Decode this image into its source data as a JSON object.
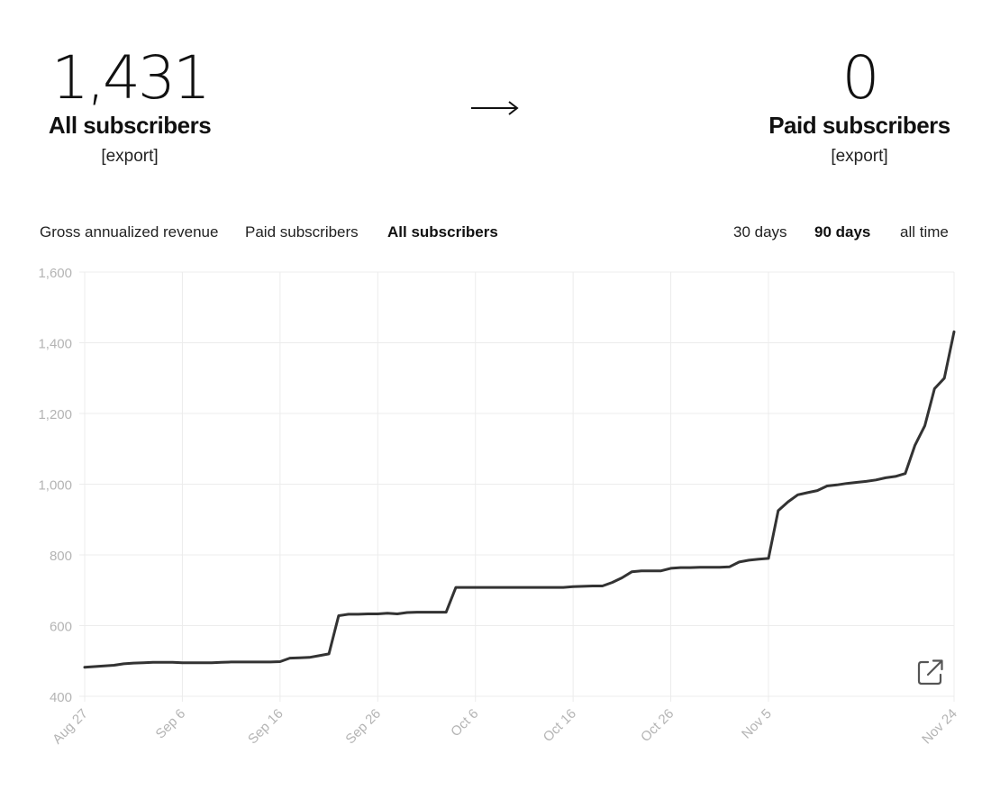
{
  "summary": {
    "from": {
      "value": "1,431",
      "label": "All subscribers",
      "export_label": "[export]"
    },
    "to": {
      "value": "0",
      "label": "Paid subscribers",
      "export_label": "[export]"
    }
  },
  "metric_tabs": [
    {
      "label": "Gross annualized revenue",
      "active": false
    },
    {
      "label": "Paid subscribers",
      "active": false
    },
    {
      "label": "All subscribers",
      "active": true
    }
  ],
  "range_tabs": [
    {
      "label": "30 days",
      "active": false
    },
    {
      "label": "90 days",
      "active": true
    },
    {
      "label": "all time",
      "active": false
    }
  ],
  "icons": {
    "arrow": "right-arrow-icon",
    "open": "open-in-new-icon"
  },
  "colors": {
    "line": "#333333",
    "grid": "#ececec",
    "tick_text": "#b4b4b4"
  },
  "chart_data": {
    "type": "line",
    "grid": true,
    "legend": "none",
    "xlabel": "",
    "ylabel": "",
    "ylim": [
      400,
      1600
    ],
    "yticks": [
      400,
      600,
      800,
      1000,
      1200,
      1400,
      1600
    ],
    "ytick_labels": [
      "400",
      "600",
      "800",
      "1,000",
      "1,200",
      "1,400",
      "1,600"
    ],
    "xlim": [
      "2022-08-27",
      "2022-11-24"
    ],
    "xticks": [
      "2022-08-27",
      "2022-09-06",
      "2022-09-16",
      "2022-09-26",
      "2022-10-06",
      "2022-10-16",
      "2022-10-26",
      "2022-11-05",
      "2022-11-24"
    ],
    "xtick_labels": [
      "Aug 27",
      "Sep 6",
      "Sep 16",
      "Sep 26",
      "Oct 6",
      "Oct 16",
      "Oct 26",
      "Nov 5",
      "Nov 24"
    ],
    "series": [
      {
        "x": [
          "2022-08-27",
          "2022-08-28",
          "2022-08-29",
          "2022-08-30",
          "2022-08-31",
          "2022-09-01",
          "2022-09-02",
          "2022-09-03",
          "2022-09-04",
          "2022-09-05",
          "2022-09-06",
          "2022-09-07",
          "2022-09-08",
          "2022-09-09",
          "2022-09-10",
          "2022-09-11",
          "2022-09-12",
          "2022-09-13",
          "2022-09-14",
          "2022-09-15",
          "2022-09-16",
          "2022-09-17",
          "2022-09-18",
          "2022-09-19",
          "2022-09-20",
          "2022-09-21",
          "2022-09-22",
          "2022-09-23",
          "2022-09-24",
          "2022-09-25",
          "2022-09-26",
          "2022-09-27",
          "2022-09-28",
          "2022-09-29",
          "2022-09-30",
          "2022-10-01",
          "2022-10-02",
          "2022-10-03",
          "2022-10-04",
          "2022-10-05",
          "2022-10-06",
          "2022-10-07",
          "2022-10-08",
          "2022-10-09",
          "2022-10-10",
          "2022-10-11",
          "2022-10-12",
          "2022-10-13",
          "2022-10-14",
          "2022-10-15",
          "2022-10-16",
          "2022-10-17",
          "2022-10-18",
          "2022-10-19",
          "2022-10-20",
          "2022-10-21",
          "2022-10-22",
          "2022-10-23",
          "2022-10-24",
          "2022-10-25",
          "2022-10-26",
          "2022-10-27",
          "2022-10-28",
          "2022-10-29",
          "2022-10-30",
          "2022-10-31",
          "2022-11-01",
          "2022-11-02",
          "2022-11-03",
          "2022-11-04",
          "2022-11-05",
          "2022-11-06",
          "2022-11-07",
          "2022-11-08",
          "2022-11-09",
          "2022-11-10",
          "2022-11-11",
          "2022-11-12",
          "2022-11-13",
          "2022-11-14",
          "2022-11-15",
          "2022-11-16",
          "2022-11-17",
          "2022-11-18",
          "2022-11-19",
          "2022-11-20",
          "2022-11-21",
          "2022-11-22",
          "2022-11-23",
          "2022-11-24"
        ],
        "y": [
          482,
          484,
          486,
          488,
          492,
          494,
          495,
          496,
          496,
          496,
          495,
          495,
          495,
          495,
          496,
          497,
          497,
          497,
          497,
          497,
          498,
          508,
          509,
          510,
          515,
          520,
          628,
          632,
          632,
          633,
          633,
          635,
          633,
          637,
          638,
          638,
          638,
          638,
          708,
          708,
          708,
          708,
          708,
          708,
          708,
          708,
          708,
          708,
          708,
          708,
          710,
          711,
          712,
          712,
          722,
          735,
          752,
          755,
          755,
          755,
          762,
          764,
          764,
          765,
          765,
          765,
          766,
          780,
          785,
          788,
          790,
          925,
          950,
          970,
          976,
          982,
          995,
          998,
          1002,
          1005,
          1008,
          1012,
          1018,
          1022,
          1030,
          1110,
          1165,
          1270,
          1300,
          1431
        ]
      }
    ]
  }
}
